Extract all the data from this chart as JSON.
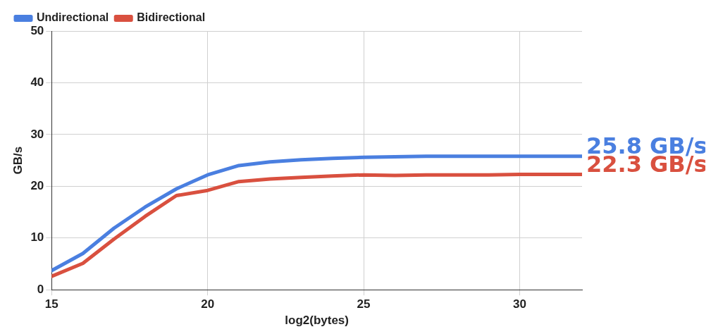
{
  "chart_data": {
    "type": "line",
    "xlabel": "log2(bytes)",
    "ylabel": "GB/s",
    "x": [
      15,
      16,
      17,
      18,
      19,
      20,
      21,
      22,
      23,
      24,
      25,
      26,
      27,
      28,
      29,
      30,
      31,
      32
    ],
    "series": [
      {
        "name": "Undirectional",
        "color": "#4a7fe0",
        "values": [
          3.7,
          7.0,
          11.9,
          16.0,
          19.5,
          22.2,
          24.0,
          24.7,
          25.1,
          25.4,
          25.6,
          25.7,
          25.8,
          25.8,
          25.8,
          25.8,
          25.8,
          25.8
        ]
      },
      {
        "name": "Bidirectional",
        "color": "#d9503f",
        "values": [
          2.6,
          5.1,
          9.8,
          14.2,
          18.2,
          19.2,
          20.9,
          21.4,
          21.7,
          22.0,
          22.2,
          22.1,
          22.2,
          22.2,
          22.2,
          22.3,
          22.3,
          22.3
        ]
      }
    ],
    "xlim": [
      15,
      32
    ],
    "xticks": [
      15,
      20,
      25,
      30
    ],
    "ylim": [
      0,
      50
    ],
    "yticks": [
      0,
      10,
      20,
      30,
      40,
      50
    ],
    "grid": true,
    "legend": "top left",
    "marker": "none",
    "line_style": "solid",
    "annotations": [
      {
        "text": "25.8 GB/s",
        "x": 32,
        "y": 25.8
      },
      {
        "text": "22.3 GB/s",
        "x": 32,
        "y": 22.3
      }
    ]
  }
}
